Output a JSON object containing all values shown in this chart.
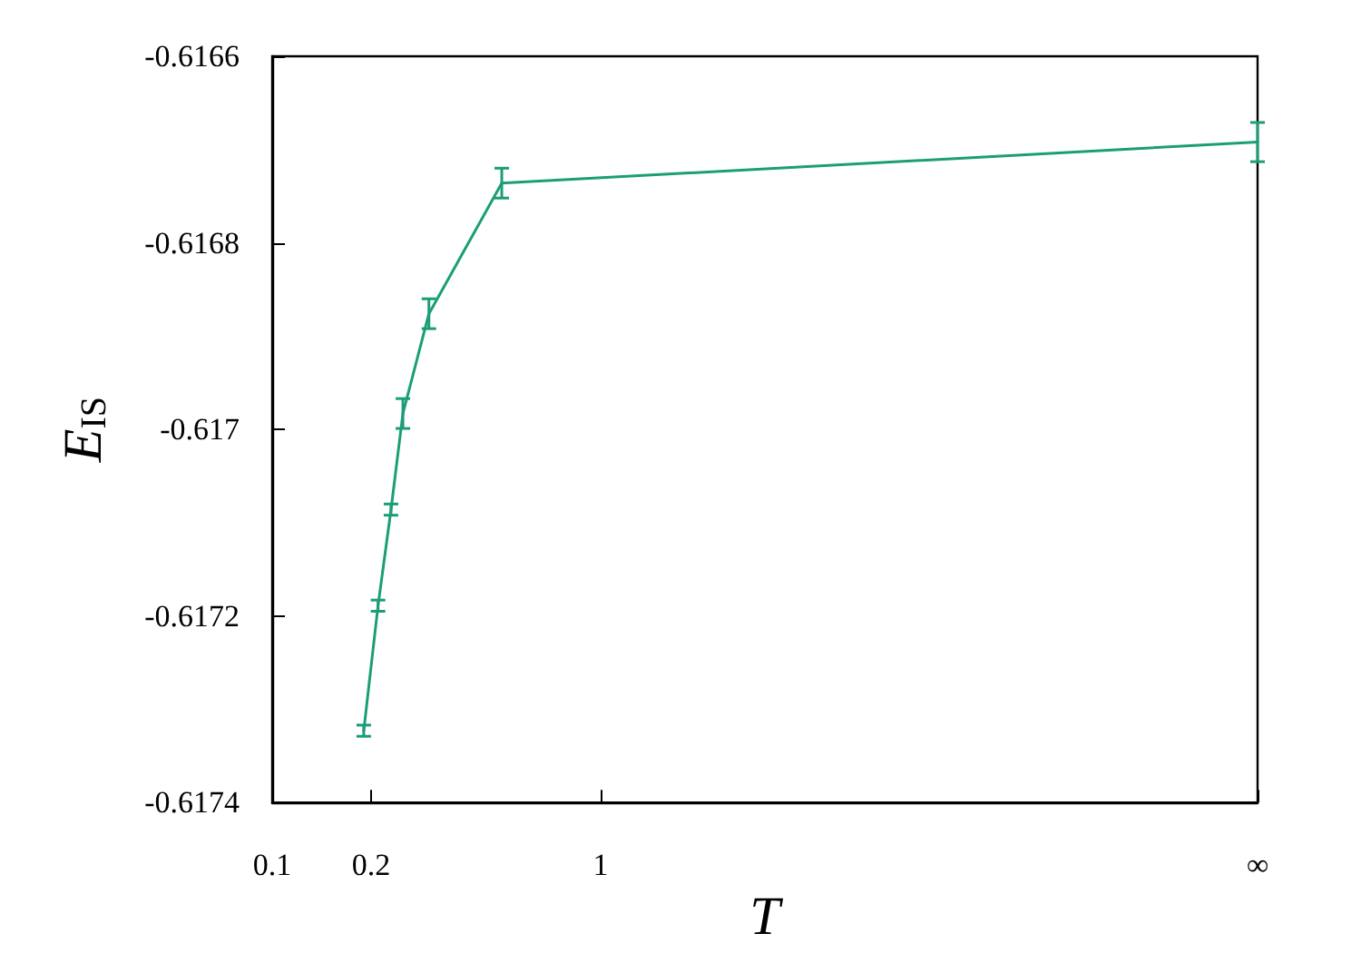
{
  "chart_data": {
    "type": "line",
    "xlabel": "T",
    "ylabel": "E$_{IS}$",
    "x": [
      0.19,
      0.21,
      0.23,
      0.25,
      0.3,
      0.5,
      100
    ],
    "series": [
      {
        "color": "#1b9e77",
        "values": [
          -0.617323,
          -0.617189,
          -0.617086,
          -0.616983,
          -0.616876,
          -0.616736,
          -0.616692
        ],
        "errors": [
          6e-06,
          6e-06,
          6e-06,
          1.6e-05,
          1.6e-05,
          1.6e-05,
          2.1e-05
        ]
      }
    ],
    "log": "x",
    "xlim": [
      0.1,
      100
    ],
    "xticks": [
      0.1,
      0.2,
      1,
      {
        "value": 100,
        "label": "∞"
      }
    ],
    "ylim": [
      -0.6174,
      -0.6166
    ],
    "yticks": [
      -0.6166,
      -0.6168,
      -0.617,
      -0.6172,
      -0.6174
    ],
    "marker": "none",
    "line_style": "solid"
  }
}
